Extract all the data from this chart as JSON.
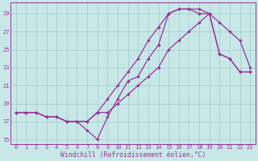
{
  "xlabel": "Windchill (Refroidissement éolien,°C)",
  "xlim": [
    -0.5,
    23.5
  ],
  "ylim": [
    14.5,
    30.2
  ],
  "xticks": [
    0,
    1,
    2,
    3,
    4,
    5,
    6,
    7,
    8,
    9,
    10,
    11,
    12,
    13,
    14,
    15,
    16,
    17,
    18,
    19,
    20,
    21,
    22,
    23
  ],
  "yticks": [
    15,
    17,
    19,
    21,
    23,
    25,
    27,
    29
  ],
  "bg_color": "#c8e8e8",
  "grid_color": "#a8cece",
  "line_color": "#993399",
  "curve1_y": [
    18.0,
    18.0,
    18.0,
    17.5,
    17.5,
    17.0,
    17.0,
    16.0,
    15.0,
    17.5,
    19.5,
    21.5,
    22.0,
    24.0,
    25.5,
    29.0,
    29.5,
    29.5,
    29.0,
    29.0,
    24.5,
    24.0,
    22.5,
    22.5
  ],
  "curve2_y": [
    18.0,
    18.0,
    18.0,
    17.5,
    17.5,
    17.0,
    17.0,
    17.0,
    18.0,
    19.5,
    21.0,
    22.5,
    24.0,
    26.0,
    27.5,
    29.0,
    29.5,
    29.5,
    29.5,
    29.0,
    24.5,
    24.0,
    22.5,
    22.5
  ],
  "curve3_y": [
    18.0,
    18.0,
    18.0,
    17.5,
    17.5,
    17.0,
    17.0,
    17.0,
    18.0,
    18.0,
    19.0,
    20.0,
    21.0,
    22.0,
    23.0,
    25.0,
    26.0,
    27.0,
    28.0,
    29.0,
    28.0,
    27.0,
    26.0,
    23.0
  ],
  "markersize": 2.2,
  "linewidth": 0.9,
  "tick_fontsize": 5.0,
  "label_fontsize": 5.8
}
